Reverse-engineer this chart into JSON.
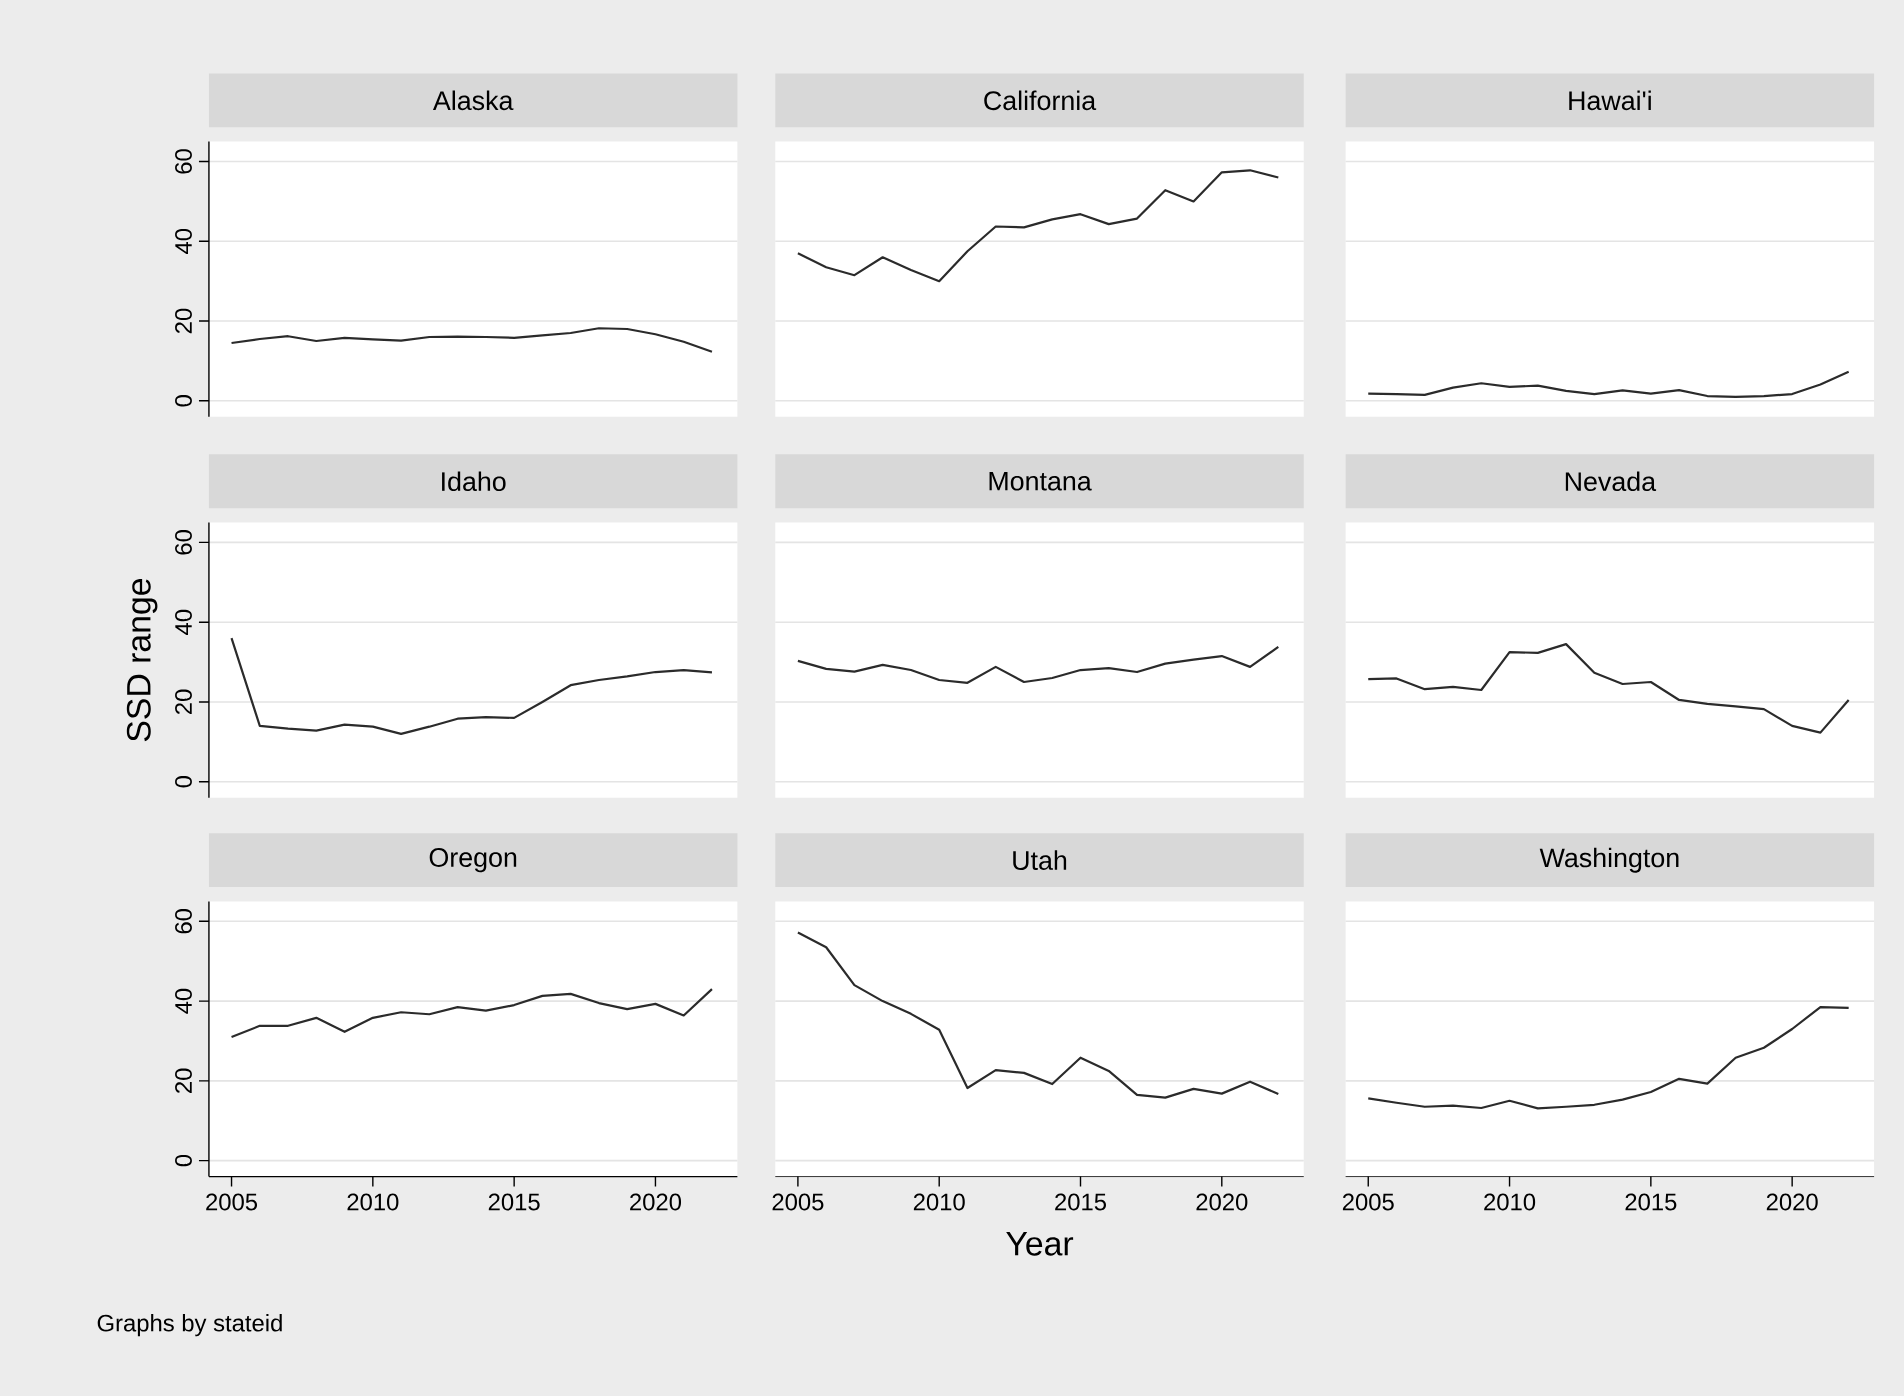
{
  "chart_data": [
    {
      "type": "line",
      "title": "Alaska",
      "x": [
        2005,
        2006,
        2007,
        2008,
        2009,
        2010,
        2011,
        2012,
        2013,
        2014,
        2015,
        2016,
        2017,
        2018,
        2019,
        2020,
        2021,
        2022
      ],
      "values": [
        14.5,
        15.5,
        16.2,
        15,
        15.8,
        15.4,
        15.1,
        16,
        16.1,
        16,
        15.8,
        16.4,
        17,
        18.2,
        18,
        16.7,
        14.8,
        12.3
      ],
      "color": "#2b2b2b",
      "xlim": [
        2004.2,
        2022.9
      ],
      "ylim": [
        -4,
        65
      ],
      "xticks": [
        2005,
        2010,
        2015,
        2020
      ],
      "yticks": [
        0,
        20,
        40,
        60
      ],
      "grid": "y",
      "tick_labels": "y"
    },
    {
      "type": "line",
      "title": "California",
      "x": [
        2005,
        2006,
        2007,
        2008,
        2009,
        2010,
        2011,
        2012,
        2013,
        2014,
        2015,
        2016,
        2017,
        2018,
        2019,
        2020,
        2021,
        2022
      ],
      "values": [
        37,
        33.5,
        31.5,
        36,
        32.8,
        30,
        37.5,
        43.7,
        43.5,
        45.5,
        46.8,
        44.3,
        45.7,
        52.8,
        50,
        57.3,
        57.8,
        56
      ],
      "color": "#2b2b2b",
      "xlim": [
        2004.2,
        2022.9
      ],
      "ylim": [
        -4,
        65
      ],
      "xticks": [
        2005,
        2010,
        2015,
        2020
      ],
      "yticks": [
        0,
        20,
        40,
        60
      ],
      "grid": "y",
      "tick_labels": false
    },
    {
      "type": "line",
      "title": "Hawai'i",
      "x": [
        2005,
        2006,
        2007,
        2008,
        2009,
        2010,
        2011,
        2012,
        2013,
        2014,
        2015,
        2016,
        2017,
        2018,
        2019,
        2020,
        2021,
        2022
      ],
      "values": [
        1.8,
        1.7,
        1.5,
        3.3,
        4.4,
        3.5,
        3.8,
        2.5,
        1.7,
        2.6,
        1.8,
        2.7,
        1.2,
        1,
        1.2,
        1.7,
        4.1,
        7.3
      ],
      "color": "#2b2b2b",
      "xlim": [
        2004.2,
        2022.9
      ],
      "ylim": [
        -4,
        65
      ],
      "xticks": [
        2005,
        2010,
        2015,
        2020
      ],
      "yticks": [
        0,
        20,
        40,
        60
      ],
      "grid": "y",
      "tick_labels": false
    },
    {
      "type": "line",
      "title": "Idaho",
      "ylabel": "SSD range",
      "x": [
        2005,
        2006,
        2007,
        2008,
        2009,
        2010,
        2011,
        2012,
        2013,
        2014,
        2015,
        2016,
        2017,
        2018,
        2019,
        2020,
        2021,
        2022
      ],
      "values": [
        36,
        14,
        13.3,
        12.8,
        14.3,
        13.8,
        12,
        13.8,
        15.8,
        16.2,
        16,
        20,
        24.2,
        25.5,
        26.4,
        27.5,
        28,
        27.4
      ],
      "color": "#2b2b2b",
      "xlim": [
        2004.2,
        2022.9
      ],
      "ylim": [
        -4,
        65
      ],
      "xticks": [
        2005,
        2010,
        2015,
        2020
      ],
      "yticks": [
        0,
        20,
        40,
        60
      ],
      "grid": "y",
      "tick_labels": "y"
    },
    {
      "type": "line",
      "title": "Montana",
      "x": [
        2005,
        2006,
        2007,
        2008,
        2009,
        2010,
        2011,
        2012,
        2013,
        2014,
        2015,
        2016,
        2017,
        2018,
        2019,
        2020,
        2021,
        2022
      ],
      "values": [
        30.3,
        28.3,
        27.6,
        29.3,
        28,
        25.5,
        24.8,
        28.8,
        25,
        26,
        28,
        28.5,
        27.5,
        29.6,
        30.6,
        31.5,
        28.8,
        33.8
      ],
      "color": "#2b2b2b",
      "xlim": [
        2004.2,
        2022.9
      ],
      "ylim": [
        -4,
        65
      ],
      "xticks": [
        2005,
        2010,
        2015,
        2020
      ],
      "yticks": [
        0,
        20,
        40,
        60
      ],
      "grid": "y",
      "tick_labels": false
    },
    {
      "type": "line",
      "title": "Nevada",
      "x": [
        2005,
        2006,
        2007,
        2008,
        2009,
        2010,
        2011,
        2012,
        2013,
        2014,
        2015,
        2016,
        2017,
        2018,
        2019,
        2020,
        2021,
        2022
      ],
      "values": [
        25.7,
        25.9,
        23.2,
        23.8,
        23,
        32.5,
        32.3,
        34.5,
        27.3,
        24.5,
        25,
        20.5,
        19.5,
        18.9,
        18.2,
        14,
        12.3,
        20.5
      ],
      "color": "#2b2b2b",
      "xlim": [
        2004.2,
        2022.9
      ],
      "ylim": [
        -4,
        65
      ],
      "xticks": [
        2005,
        2010,
        2015,
        2020
      ],
      "yticks": [
        0,
        20,
        40,
        60
      ],
      "grid": "y",
      "tick_labels": false
    },
    {
      "type": "line",
      "title": "Oregon",
      "annotations": [
        "Graphs by stateid"
      ],
      "x": [
        2005,
        2006,
        2007,
        2008,
        2009,
        2010,
        2011,
        2012,
        2013,
        2014,
        2015,
        2016,
        2017,
        2018,
        2019,
        2020,
        2021,
        2022
      ],
      "values": [
        31,
        33.8,
        33.8,
        35.8,
        32.3,
        35.8,
        37.2,
        36.7,
        38.5,
        37.6,
        39,
        41.3,
        41.8,
        39.5,
        38,
        39.3,
        36.4,
        43
      ],
      "color": "#2b2b2b",
      "xlim": [
        2004.2,
        2022.9
      ],
      "ylim": [
        -4,
        65
      ],
      "xticks": [
        2005,
        2010,
        2015,
        2020
      ],
      "yticks": [
        0,
        20,
        40,
        60
      ],
      "grid": "y"
    },
    {
      "type": "line",
      "title": "Utah",
      "xlabel": "Year",
      "x": [
        2005,
        2006,
        2007,
        2008,
        2009,
        2010,
        2011,
        2012,
        2013,
        2014,
        2015,
        2016,
        2017,
        2018,
        2019,
        2020,
        2021,
        2022
      ],
      "values": [
        57.2,
        53.5,
        44,
        40,
        36.8,
        32.8,
        18.2,
        22.7,
        22,
        19.2,
        25.8,
        22.5,
        16.5,
        15.8,
        18,
        16.8,
        19.8,
        16.7
      ],
      "color": "#2b2b2b",
      "xlim": [
        2004.2,
        2022.9
      ],
      "ylim": [
        -4,
        65
      ],
      "xticks": [
        2005,
        2010,
        2015,
        2020
      ],
      "yticks": [
        0,
        20,
        40,
        60
      ],
      "grid": "y",
      "tick_labels": "x"
    },
    {
      "type": "line",
      "title": "Washington",
      "x": [
        2005,
        2006,
        2007,
        2008,
        2009,
        2010,
        2011,
        2012,
        2013,
        2014,
        2015,
        2016,
        2017,
        2018,
        2019,
        2020,
        2021,
        2022
      ],
      "values": [
        15.6,
        14.5,
        13.5,
        13.8,
        13.2,
        15,
        13.1,
        13.5,
        14,
        15.3,
        17.2,
        20.5,
        19.3,
        25.8,
        28.3,
        33,
        38.5,
        38.3
      ],
      "color": "#2b2b2b",
      "xlim": [
        2004.2,
        2022.9
      ],
      "ylim": [
        -4,
        65
      ],
      "xticks": [
        2005,
        2010,
        2015,
        2020
      ],
      "yticks": [
        0,
        20,
        40,
        60
      ],
      "grid": "y",
      "tick_labels": "x"
    }
  ]
}
